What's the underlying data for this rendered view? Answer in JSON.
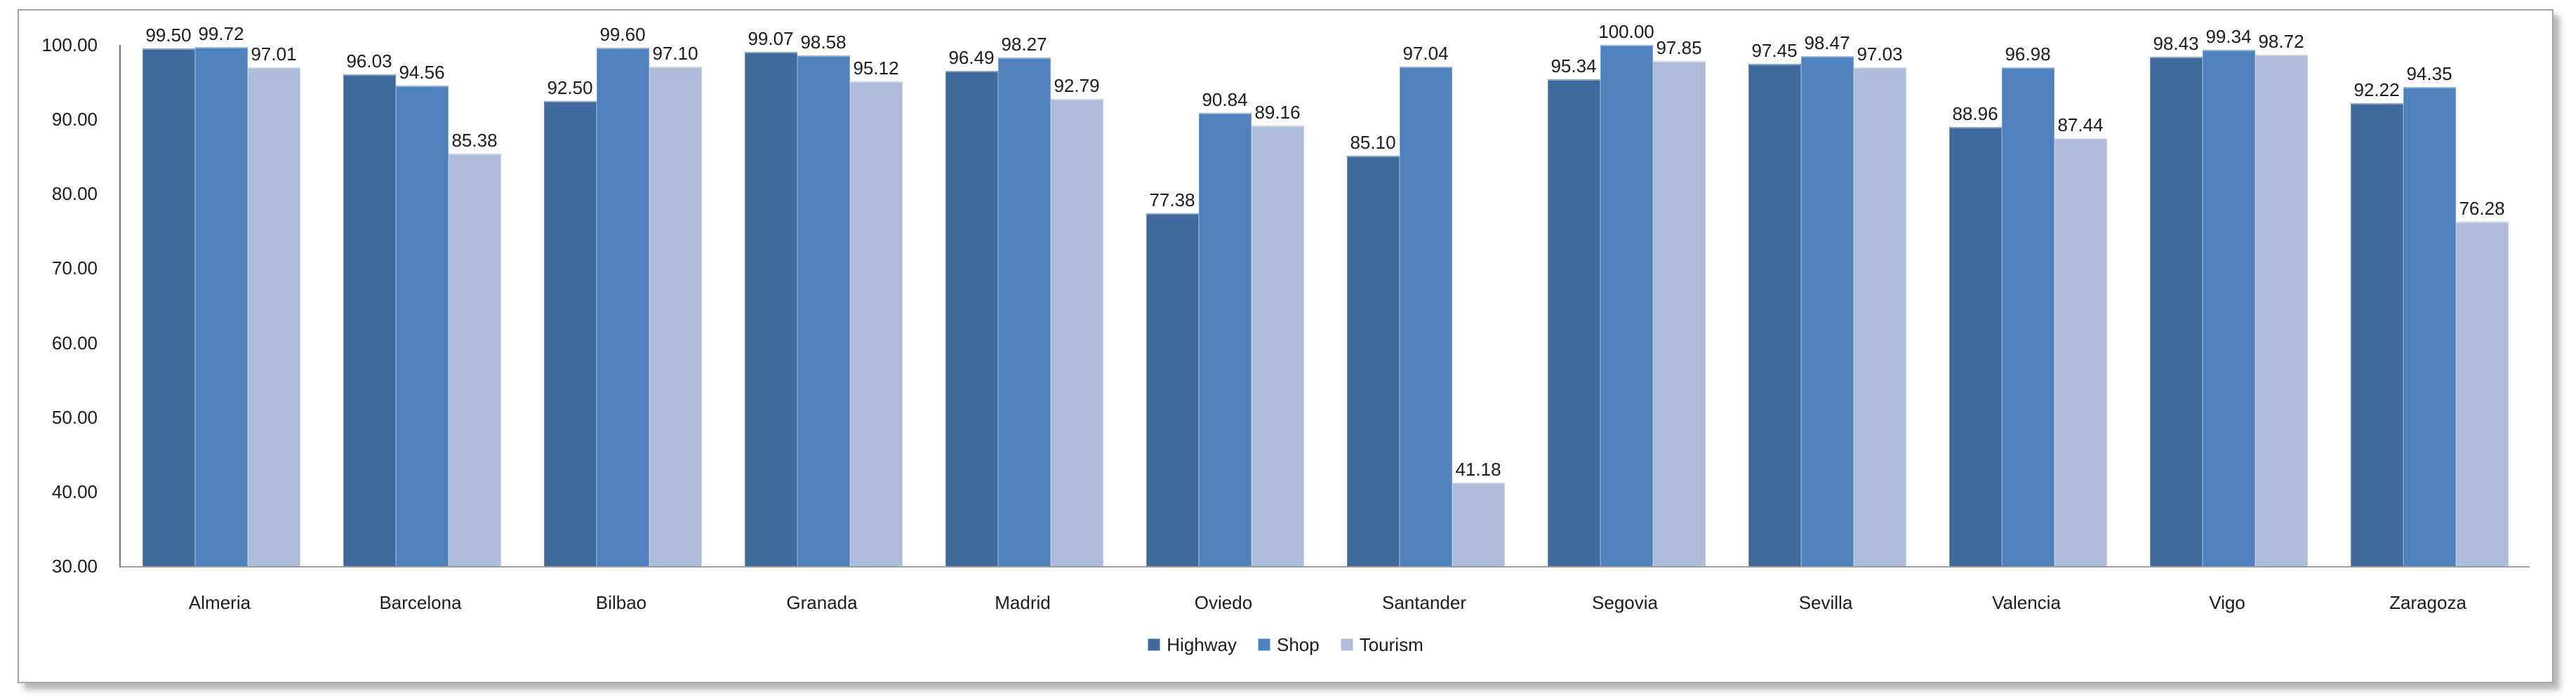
{
  "chart_data": {
    "type": "bar",
    "title": "",
    "categories": [
      "Almeria",
      "Barcelona",
      "Bilbao",
      "Granada",
      "Madrid",
      "Oviedo",
      "Santander",
      "Segovia",
      "Sevilla",
      "Valencia",
      "Vigo",
      "Zaragoza"
    ],
    "series": [
      {
        "name": "Highway",
        "color": "#40699C",
        "values": [
          99.5,
          96.03,
          92.5,
          99.07,
          96.49,
          77.38,
          85.1,
          95.34,
          97.45,
          88.96,
          98.43,
          92.22
        ]
      },
      {
        "name": "Shop",
        "color": "#4F81BD",
        "values": [
          99.72,
          94.56,
          99.6,
          98.58,
          98.27,
          90.84,
          97.04,
          100.0,
          98.47,
          96.98,
          99.34,
          94.35
        ]
      },
      {
        "name": "Tourism",
        "color": "#AEBCDA",
        "values": [
          97.01,
          85.38,
          97.1,
          95.12,
          92.79,
          89.16,
          41.18,
          97.85,
          97.03,
          87.44,
          98.72,
          76.28
        ]
      }
    ],
    "xlabel": "",
    "ylabel": "",
    "ylim": [
      30,
      100
    ],
    "ytick_labels": [
      "100.00",
      "90.00",
      "80.00",
      "70.00",
      "60.00",
      "50.00",
      "40.00",
      "30.00"
    ],
    "grid": false,
    "legend_position": "bottom-center",
    "value_labels": true,
    "value_label_decimals": 2
  }
}
